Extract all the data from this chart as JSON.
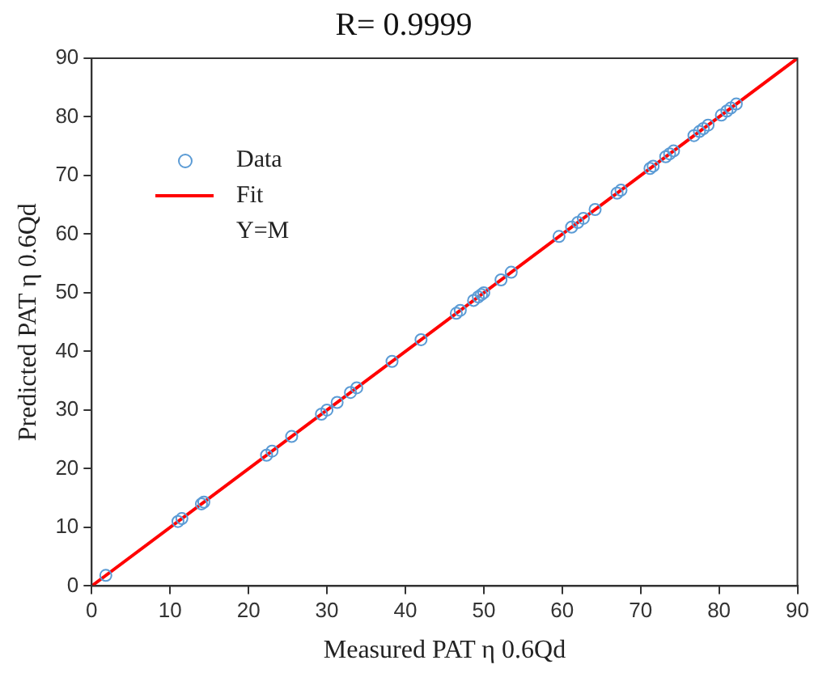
{
  "chart_data": {
    "type": "scatter",
    "title": "R= 0.9999",
    "xlabel": "Measured PAT η 0.6Qd",
    "ylabel": "Predicted PAT η 0.6Qd",
    "xlim": [
      0,
      90
    ],
    "ylim": [
      0,
      90
    ],
    "xticks": [
      0,
      10,
      20,
      30,
      40,
      50,
      60,
      70,
      80,
      90
    ],
    "yticks": [
      0,
      10,
      20,
      30,
      40,
      50,
      60,
      70,
      80,
      90
    ],
    "grid": false,
    "legend": "top left",
    "annotations": [
      "Y=M"
    ],
    "series": [
      {
        "name": "Data",
        "marker": "circle",
        "color": "#5b9bd5",
        "x": [
          1.8,
          11,
          11.5,
          14,
          14.3,
          22.3,
          23,
          25.5,
          29.3,
          30,
          31.3,
          33,
          33.8,
          38.3,
          42,
          46.5,
          47,
          48.7,
          49.3,
          49.7,
          50,
          52.2,
          53.5,
          59.6,
          61.2,
          62,
          62.7,
          64.2,
          67,
          67.5,
          71.2,
          71.6,
          73.2,
          73.7,
          74.2,
          76.8,
          77.5,
          78,
          78.6,
          80.3,
          81,
          81.5,
          82.2
        ],
        "values": [
          1.8,
          11,
          11.5,
          14,
          14.3,
          22.3,
          23,
          25.5,
          29.3,
          30,
          31.3,
          33,
          33.8,
          38.3,
          42,
          46.5,
          47,
          48.7,
          49.3,
          49.7,
          50,
          52.2,
          53.5,
          59.6,
          61.2,
          62,
          62.7,
          64.2,
          67,
          67.5,
          71.2,
          71.6,
          73.2,
          73.7,
          74.2,
          76.8,
          77.5,
          78,
          78.6,
          80.3,
          81,
          81.5,
          82.2
        ]
      },
      {
        "name": "Fit",
        "type": "line",
        "color": "#ff0000",
        "x": [
          0,
          90
        ],
        "values": [
          0,
          90
        ]
      }
    ]
  }
}
